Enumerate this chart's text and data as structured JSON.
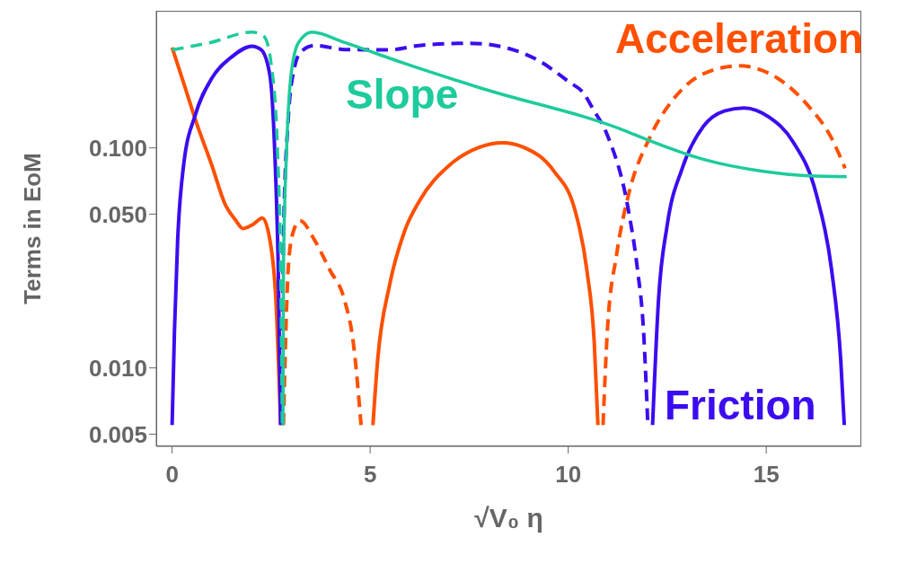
{
  "chart_data": {
    "type": "line",
    "xlabel": "√V₀ η",
    "ylabel": "Terms in EoM",
    "log": "y",
    "marker": "none",
    "xlim": [
      -0.4,
      17.4
    ],
    "xticks": [
      0,
      5,
      10,
      15
    ],
    "ylim": [
      0.0044,
      0.42
    ],
    "yticks": [
      {
        "value": 0.005,
        "label": "0.005"
      },
      {
        "value": 0.01,
        "label": "0.010"
      },
      {
        "value": 0.05,
        "label": "0.050"
      },
      {
        "value": 0.1,
        "label": "0.100"
      }
    ],
    "series": [
      {
        "name": "Acceleration",
        "color": "#ff5000",
        "line_style": "solid",
        "x": [
          0,
          0.3,
          0.59,
          1.0,
          1.34,
          1.6,
          1.79,
          2.05,
          2.28,
          2.47,
          2.62,
          2.74,
          3.9,
          5.07,
          5.19,
          5.49,
          5.87,
          6.24,
          7.0,
          7.75,
          8.34,
          8.88,
          9.64,
          10.17,
          10.47,
          10.66,
          10.75
        ],
        "values": [
          0.286,
          0.195,
          0.134,
          0.0836,
          0.0553,
          0.047,
          0.043,
          0.045,
          0.048,
          0.038,
          0.0204,
          0.0055,
          null,
          0.0055,
          0.0109,
          0.0238,
          0.0419,
          0.0573,
          0.0834,
          0.1006,
          0.1055,
          0.1006,
          0.0783,
          0.0521,
          0.0279,
          0.0128,
          0.0055
        ]
      },
      {
        "color": "#ff5000",
        "line_style": "dashed",
        "x": [
          2.81,
          2.93,
          3.04,
          3.23,
          3.6,
          3.98,
          4.35,
          4.58,
          4.77,
          8.0,
          10.88,
          10.99,
          11.22,
          11.52,
          12.05,
          12.65,
          13.41,
          14.31,
          15.29,
          16.05,
          16.65,
          16.99
        ],
        "values": [
          0.0055,
          0.0279,
          0.0405,
          0.0467,
          0.038,
          0.0279,
          0.0204,
          0.0128,
          0.0055,
          null,
          0.0055,
          0.0149,
          0.0326,
          0.061,
          0.1106,
          0.166,
          0.217,
          0.236,
          0.207,
          0.156,
          0.1106,
          0.0808
        ]
      },
      {
        "name": "Friction",
        "color": "#3b0cf0",
        "line_style": "solid",
        "x": [
          0,
          0.06,
          0.14,
          0.29,
          0.59,
          1.0,
          1.49,
          2.02,
          2.25,
          2.47,
          2.59,
          2.68,
          2.74,
          7.0,
          12.13,
          12.28,
          12.5,
          12.88,
          13.41,
          13.94,
          14.44,
          15.07,
          15.67,
          16.27,
          16.65,
          16.88,
          16.97
        ],
        "values": [
          0.0055,
          0.0149,
          0.0381,
          0.0834,
          0.142,
          0.207,
          0.258,
          0.29,
          0.279,
          0.213,
          0.0975,
          0.0279,
          0.0055,
          null,
          0.0055,
          0.0204,
          0.0446,
          0.0808,
          0.125,
          0.147,
          0.152,
          0.138,
          0.107,
          0.061,
          0.0279,
          0.0109,
          0.0055
        ]
      },
      {
        "color": "#3b0cf0",
        "line_style": "dashed",
        "x": [
          2.78,
          2.81,
          2.93,
          3.08,
          3.26,
          3.6,
          4.36,
          5.48,
          6.24,
          7.52,
          8.5,
          9.26,
          10.01,
          10.39,
          10.62,
          10.99,
          11.52,
          11.75,
          11.9,
          12.01
        ],
        "values": [
          0.0055,
          0.0381,
          0.134,
          0.228,
          0.274,
          0.292,
          0.28,
          0.279,
          0.292,
          0.299,
          0.283,
          0.249,
          0.2,
          0.177,
          0.151,
          0.114,
          0.0521,
          0.0279,
          0.0149,
          0.0055
        ]
      },
      {
        "name": "Slope",
        "color": "#1ecb9c",
        "line_style": "solid",
        "x": [
          2.8,
          2.81,
          2.89,
          3.0,
          3.19,
          3.53,
          4.36,
          5.87,
          7.75,
          11.52,
          11.9,
          13.41,
          14.92,
          16.05,
          17.03
        ],
        "values": [
          0.0055,
          0.0279,
          0.0975,
          0.213,
          0.301,
          0.336,
          0.301,
          0.242,
          0.188,
          0.118,
          0.1106,
          0.0888,
          0.0783,
          0.0747,
          0.074
        ]
      },
      {
        "color": "#1ecb9c",
        "line_style": "dashed",
        "x": [
          0,
          0.96,
          2.02,
          2.32,
          2.51,
          2.66,
          2.74,
          2.78
        ],
        "values": [
          0.279,
          0.301,
          0.336,
          0.321,
          0.234,
          0.0975,
          0.0279,
          0.0055
        ]
      }
    ]
  }
}
